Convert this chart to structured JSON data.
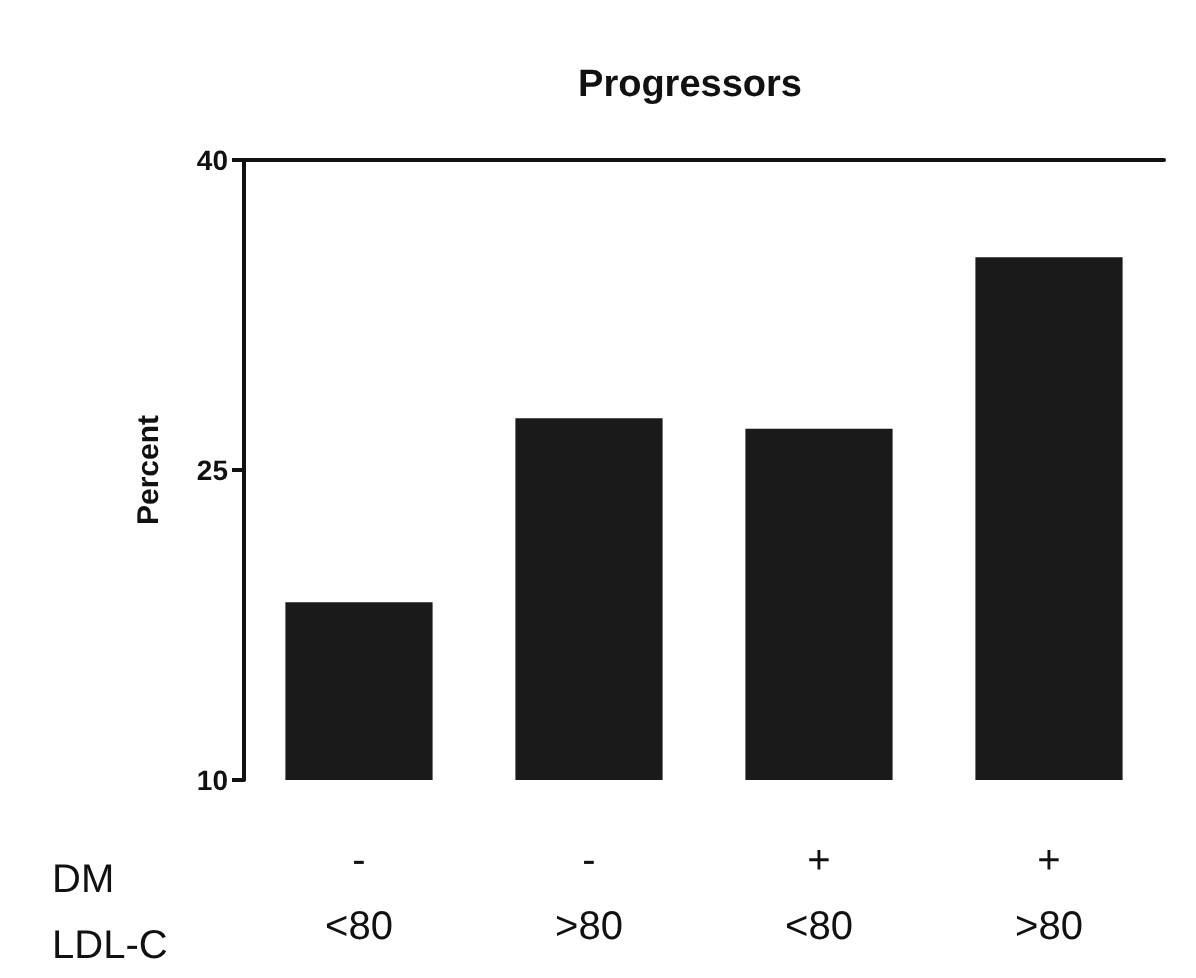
{
  "chart_data": {
    "type": "bar",
    "title": "Progressors",
    "ylabel": "Percent",
    "categories": [
      "-\n<80",
      "-\n>80",
      "+\n<80",
      "+\n>80"
    ],
    "values": [
      18.6,
      27.5,
      27.0,
      35.3
    ],
    "color": "#1a1a1a",
    "ylim": [
      10,
      40
    ],
    "yticks": [
      10,
      25,
      40
    ],
    "grid": false,
    "annotations": [
      "DM",
      "LDL-C"
    ]
  }
}
